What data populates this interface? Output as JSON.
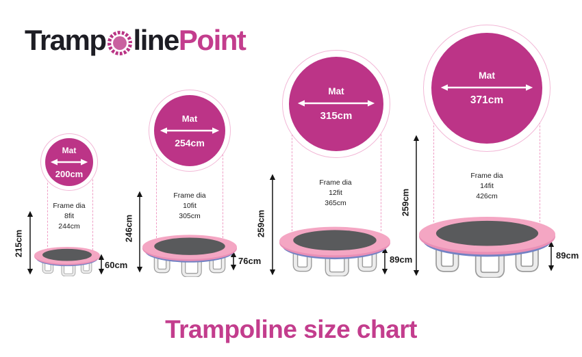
{
  "logo": {
    "word_dark_1": "Tramp",
    "word_dark_2": "line",
    "word_accent": "Point"
  },
  "title": "Trampoline size chart",
  "colors": {
    "accent": "#c33d8d",
    "mat_circle": "#bc3487",
    "ring_border": "#f2b7d6",
    "dash": "#ef9cc4",
    "pad_pink": "#f4a6c3",
    "pad_under": "#e98fb6",
    "rim_blue": "#7282c4",
    "mat_gray": "#595a5c",
    "leg_light": "#ececec",
    "leg_outline": "#9b9b9b",
    "ink": "#1a1a1a",
    "logo_dark": "#1d1d24"
  },
  "trampolines": [
    {
      "mat_label": "Mat",
      "mat_diameter": "200cm",
      "frame_label": "Frame dia",
      "frame_feet": "8fit",
      "frame_diameter": "244cm",
      "total_height": "215cm",
      "frame_height": "60cm"
    },
    {
      "mat_label": "Mat",
      "mat_diameter": "254cm",
      "frame_label": "Frame dia",
      "frame_feet": "10fit",
      "frame_diameter": "305cm",
      "total_height": "246cm",
      "frame_height": "76cm"
    },
    {
      "mat_label": "Mat",
      "mat_diameter": "315cm",
      "frame_label": "Frame dia",
      "frame_feet": "12fit",
      "frame_diameter": "365cm",
      "total_height": "259cm",
      "frame_height": "89cm"
    },
    {
      "mat_label": "Mat",
      "mat_diameter": "371cm",
      "frame_label": "Frame dia",
      "frame_feet": "14fit",
      "frame_diameter": "426cm",
      "total_height": "259cm",
      "frame_height": "89cm"
    }
  ]
}
